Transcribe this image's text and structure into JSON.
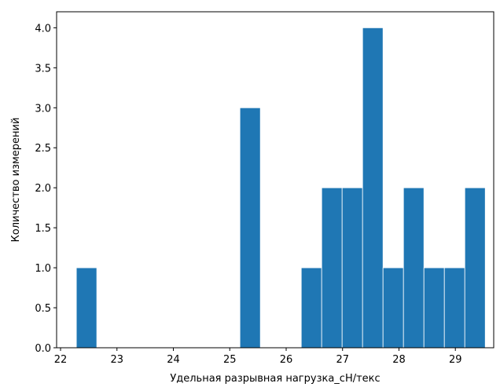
{
  "chart_data": {
    "type": "bar",
    "title": "",
    "xlabel": "Удельная разрывная нагрузка_cН/текс",
    "ylabel": "Количество измерений",
    "xlim": [
      21.93,
      29.68
    ],
    "ylim": [
      0,
      4.2
    ],
    "xticks": [
      "22",
      "23",
      "24",
      "25",
      "26",
      "27",
      "28",
      "29"
    ],
    "yticks": [
      "0.0",
      "0.5",
      "1.0",
      "1.5",
      "2.0",
      "2.5",
      "3.0",
      "3.5",
      "4.0"
    ],
    "bin_start": 22.28,
    "bin_width": 0.3625,
    "counts": [
      1,
      0,
      0,
      0,
      0,
      0,
      0,
      0,
      3,
      0,
      0,
      1,
      2,
      2,
      4,
      1,
      2,
      1,
      1,
      2
    ],
    "bar_color": "#1f77b4",
    "grid": false,
    "legend": "none"
  }
}
